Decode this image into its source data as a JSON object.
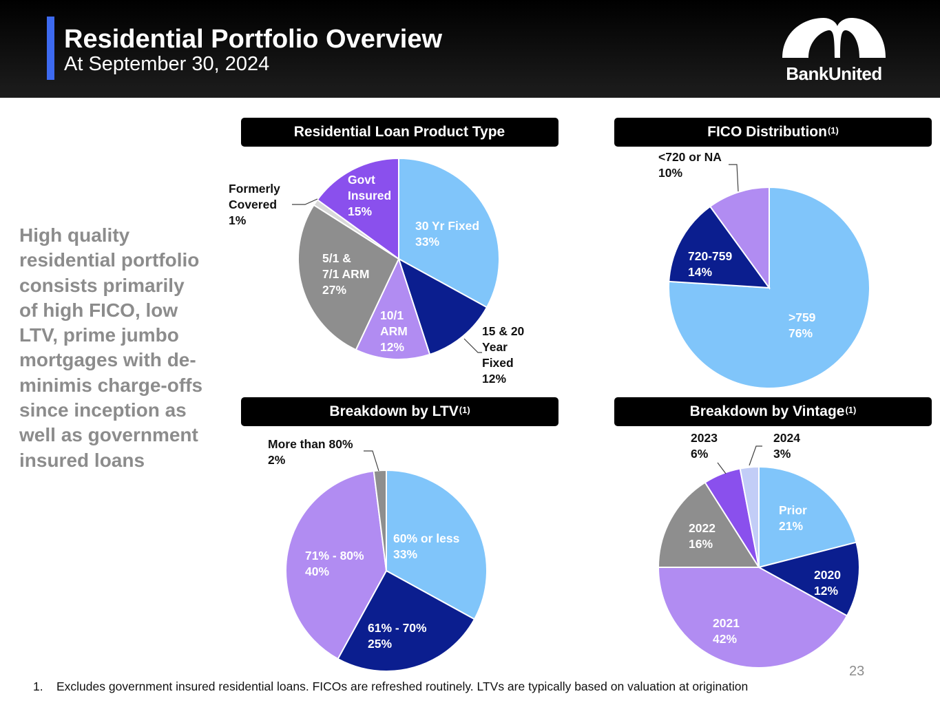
{
  "header": {
    "title": "Residential Portfolio Overview",
    "subtitle": "At September 30, 2024",
    "accent_color": "#3d6af0",
    "logo_text": "BankUnited"
  },
  "sidebar": {
    "text": "High quality residential portfolio consists primarily of high FICO, low LTV, prime jumbo mortgages with de-minimis charge-offs since inception as well as government insured loans"
  },
  "colors": {
    "light_blue": "#80c5fa",
    "dark_blue": "#0b1e8f",
    "lavender": "#b18cf2",
    "gray": "#8e8e8e",
    "purple": "#8a50ed",
    "pale_lavender": "#c2cdf7",
    "pale_gray": "#d9d9d9"
  },
  "chart_data": [
    {
      "type": "pie",
      "title": "Residential Loan Product Type",
      "title_sup": "",
      "slices": [
        {
          "label": "30 Yr Fixed",
          "value": 33,
          "pct": "33%",
          "color": "#80c5fa",
          "text_color": "#ffffff"
        },
        {
          "label": "15 & 20 Year Fixed",
          "value": 12,
          "pct": "12%",
          "color": "#0b1e8f",
          "text_color": "#111111"
        },
        {
          "label": "10/1 ARM",
          "value": 12,
          "pct": "12%",
          "color": "#b18cf2",
          "text_color": "#ffffff"
        },
        {
          "label": "5/1 & 7/1 ARM",
          "value": 27,
          "pct": "27%",
          "color": "#8e8e8e",
          "text_color": "#ffffff"
        },
        {
          "label": "Formerly Covered",
          "value": 1,
          "pct": "1%",
          "color": "#d9d9d9",
          "text_color": "#111111"
        },
        {
          "label": "Govt Insured",
          "value": 15,
          "pct": "15%",
          "color": "#8a50ed",
          "text_color": "#ffffff"
        }
      ]
    },
    {
      "type": "pie",
      "title": "FICO Distribution",
      "title_sup": "(1)",
      "slices": [
        {
          "label": ">759",
          "value": 76,
          "pct": "76%",
          "color": "#80c5fa",
          "text_color": "#ffffff"
        },
        {
          "label": "720-759",
          "value": 14,
          "pct": "14%",
          "color": "#0b1e8f",
          "text_color": "#ffffff"
        },
        {
          "label": "<720 or NA",
          "value": 10,
          "pct": "10%",
          "color": "#b18cf2",
          "text_color": "#111111"
        }
      ]
    },
    {
      "type": "pie",
      "title": "Breakdown by LTV",
      "title_sup": "(1)",
      "slices": [
        {
          "label": "60% or less",
          "value": 33,
          "pct": "33%",
          "color": "#80c5fa",
          "text_color": "#ffffff"
        },
        {
          "label": "61% - 70%",
          "value": 25,
          "pct": "25%",
          "color": "#0b1e8f",
          "text_color": "#ffffff"
        },
        {
          "label": "71% - 80%",
          "value": 40,
          "pct": "40%",
          "color": "#b18cf2",
          "text_color": "#ffffff"
        },
        {
          "label": "More than 80%",
          "value": 2,
          "pct": "2%",
          "color": "#8e8e8e",
          "text_color": "#111111"
        }
      ]
    },
    {
      "type": "pie",
      "title": "Breakdown by Vintage",
      "title_sup": "(1)",
      "slices": [
        {
          "label": "Prior",
          "value": 21,
          "pct": "21%",
          "color": "#80c5fa",
          "text_color": "#ffffff"
        },
        {
          "label": "2020",
          "value": 12,
          "pct": "12%",
          "color": "#0b1e8f",
          "text_color": "#ffffff"
        },
        {
          "label": "2021",
          "value": 42,
          "pct": "42%",
          "color": "#b18cf2",
          "text_color": "#ffffff"
        },
        {
          "label": "2022",
          "value": 16,
          "pct": "16%",
          "color": "#8e8e8e",
          "text_color": "#ffffff"
        },
        {
          "label": "2023",
          "value": 6,
          "pct": "6%",
          "color": "#8a50ed",
          "text_color": "#111111"
        },
        {
          "label": "2024",
          "value": 3,
          "pct": "3%",
          "color": "#c2cdf7",
          "text_color": "#111111"
        }
      ]
    }
  ],
  "page_number": "23",
  "footnote": {
    "number": "1.",
    "text": "Excludes government insured residential loans. FICOs are refreshed routinely. LTVs are typically based on valuation at origination"
  }
}
